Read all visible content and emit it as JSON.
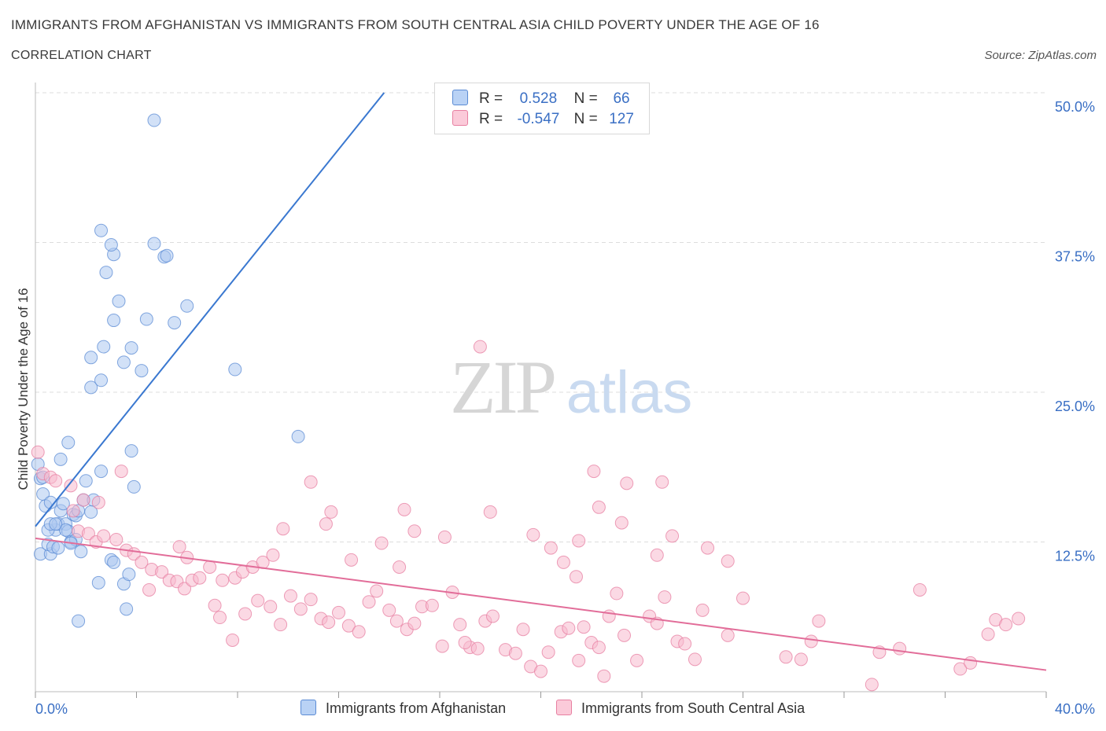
{
  "header": {
    "title": "IMMIGRANTS FROM AFGHANISTAN VS IMMIGRANTS FROM SOUTH CENTRAL ASIA CHILD POVERTY UNDER THE AGE OF 16",
    "subtitle": "CORRELATION CHART",
    "source": "Source: ZipAtlas.com"
  },
  "legend": {
    "r_label": "R =",
    "n_label": "N =",
    "rows": [
      {
        "r": "0.528",
        "n": "66"
      },
      {
        "r": "-0.547",
        "n": "127"
      }
    ]
  },
  "colors": {
    "afghanistan_fill": "#adc8f0",
    "afghanistan_stroke": "#5b8bd4",
    "afghanistan_line": "#3a78d0",
    "sca_fill": "#f7b9cd",
    "sca_stroke": "#e77fa1",
    "sca_line": "#e26d99",
    "axis_label": "#3a6fc4",
    "grid": "#dddddd"
  },
  "watermark": {
    "zip": "ZIP",
    "atlas": "atlas"
  },
  "chart_data": {
    "type": "scatter",
    "title": "IMMIGRANTS FROM AFGHANISTAN VS IMMIGRANTS FROM SOUTH CENTRAL ASIA CHILD POVERTY UNDER THE AGE OF 16",
    "xlabel": "",
    "ylabel": "Child Poverty Under the Age of 16",
    "xlim": [
      0,
      40
    ],
    "ylim": [
      0,
      50
    ],
    "x_ticks": [
      "0.0%",
      "40.0%"
    ],
    "y_ticks": [
      "12.5%",
      "25.0%",
      "37.5%",
      "50.0%"
    ],
    "y_tick_values": [
      12.5,
      25.0,
      37.5,
      50.0
    ],
    "grid": true,
    "series": [
      {
        "name": "Immigrants from Afghanistan",
        "r": 0.528,
        "n": 66,
        "trend": {
          "x0": 0.0,
          "y0": 13.8,
          "x1": 13.8,
          "y1": 50.0
        },
        "points": [
          [
            0.1,
            19.0
          ],
          [
            0.2,
            17.8
          ],
          [
            0.3,
            16.5
          ],
          [
            0.4,
            15.5
          ],
          [
            0.2,
            11.5
          ],
          [
            0.6,
            11.5
          ],
          [
            0.5,
            12.3
          ],
          [
            0.7,
            12.1
          ],
          [
            0.8,
            13.5
          ],
          [
            0.9,
            14.0
          ],
          [
            0.5,
            13.5
          ],
          [
            0.6,
            14.0
          ],
          [
            1.0,
            15.1
          ],
          [
            1.1,
            15.7
          ],
          [
            1.2,
            14.0
          ],
          [
            1.3,
            13.4
          ],
          [
            1.4,
            12.5
          ],
          [
            1.5,
            14.8
          ],
          [
            1.6,
            14.7
          ],
          [
            1.8,
            11.7
          ],
          [
            1.9,
            16.0
          ],
          [
            2.0,
            17.6
          ],
          [
            2.3,
            16.0
          ],
          [
            1.2,
            13.5
          ],
          [
            1.0,
            19.4
          ],
          [
            1.3,
            20.8
          ],
          [
            0.3,
            17.9
          ],
          [
            0.9,
            12.0
          ],
          [
            1.6,
            12.7
          ],
          [
            2.2,
            15.0
          ],
          [
            2.6,
            18.4
          ],
          [
            3.0,
            11.0
          ],
          [
            3.1,
            10.8
          ],
          [
            3.5,
            9.0
          ],
          [
            3.7,
            9.8
          ],
          [
            2.5,
            9.1
          ],
          [
            3.6,
            6.9
          ],
          [
            1.7,
            5.9
          ],
          [
            3.8,
            20.1
          ],
          [
            3.9,
            17.1
          ],
          [
            2.2,
            25.4
          ],
          [
            2.6,
            26.0
          ],
          [
            2.7,
            28.8
          ],
          [
            2.2,
            27.9
          ],
          [
            3.5,
            27.5
          ],
          [
            3.8,
            28.7
          ],
          [
            4.2,
            26.8
          ],
          [
            3.1,
            31.0
          ],
          [
            3.3,
            32.6
          ],
          [
            4.4,
            31.1
          ],
          [
            5.5,
            30.8
          ],
          [
            6.0,
            32.2
          ],
          [
            2.8,
            35.0
          ],
          [
            3.1,
            36.5
          ],
          [
            3.0,
            37.3
          ],
          [
            2.6,
            38.5
          ],
          [
            4.7,
            37.4
          ],
          [
            5.1,
            36.3
          ],
          [
            5.2,
            36.4
          ],
          [
            4.7,
            47.7
          ],
          [
            7.9,
            26.9
          ],
          [
            10.4,
            21.3
          ],
          [
            1.4,
            12.4
          ],
          [
            1.7,
            15.1
          ],
          [
            0.6,
            15.8
          ],
          [
            0.8,
            14.0
          ]
        ]
      },
      {
        "name": "Immigrants from South Central Asia",
        "r": -0.547,
        "n": 127,
        "trend": {
          "x0": 0.0,
          "y0": 12.8,
          "x1": 40.0,
          "y1": 1.8
        },
        "points": [
          [
            0.1,
            20.0
          ],
          [
            0.3,
            18.2
          ],
          [
            0.6,
            17.9
          ],
          [
            0.8,
            17.6
          ],
          [
            1.4,
            17.2
          ],
          [
            1.9,
            16.0
          ],
          [
            2.5,
            15.8
          ],
          [
            1.5,
            15.1
          ],
          [
            1.7,
            13.4
          ],
          [
            2.1,
            13.2
          ],
          [
            2.4,
            12.5
          ],
          [
            2.7,
            13.0
          ],
          [
            3.2,
            12.7
          ],
          [
            3.6,
            11.8
          ],
          [
            3.9,
            11.5
          ],
          [
            4.2,
            10.8
          ],
          [
            4.6,
            10.2
          ],
          [
            5.0,
            10.0
          ],
          [
            5.3,
            9.3
          ],
          [
            5.6,
            9.2
          ],
          [
            5.9,
            8.6
          ],
          [
            6.2,
            9.3
          ],
          [
            6.5,
            9.5
          ],
          [
            6.9,
            10.4
          ],
          [
            7.4,
            9.3
          ],
          [
            7.9,
            9.5
          ],
          [
            8.2,
            10.0
          ],
          [
            8.6,
            10.4
          ],
          [
            9.0,
            10.8
          ],
          [
            9.4,
            11.4
          ],
          [
            3.4,
            18.4
          ],
          [
            4.5,
            8.5
          ],
          [
            5.7,
            12.1
          ],
          [
            6.0,
            11.2
          ],
          [
            7.1,
            7.2
          ],
          [
            7.3,
            6.2
          ],
          [
            8.3,
            6.5
          ],
          [
            8.8,
            7.6
          ],
          [
            9.3,
            7.1
          ],
          [
            9.7,
            5.6
          ],
          [
            10.1,
            8.0
          ],
          [
            10.5,
            6.9
          ],
          [
            10.9,
            7.7
          ],
          [
            11.3,
            6.1
          ],
          [
            11.6,
            5.8
          ],
          [
            12.0,
            6.6
          ],
          [
            12.4,
            5.5
          ],
          [
            12.8,
            5.0
          ],
          [
            13.2,
            7.5
          ],
          [
            13.5,
            8.4
          ],
          [
            14.0,
            6.8
          ],
          [
            14.3,
            5.9
          ],
          [
            14.7,
            5.2
          ],
          [
            15.0,
            5.7
          ],
          [
            15.3,
            7.1
          ],
          [
            15.7,
            7.2
          ],
          [
            16.1,
            3.8
          ],
          [
            16.5,
            8.3
          ],
          [
            16.8,
            5.6
          ],
          [
            17.2,
            3.7
          ],
          [
            17.5,
            3.6
          ],
          [
            17.8,
            5.9
          ],
          [
            18.1,
            6.3
          ],
          [
            18.6,
            3.5
          ],
          [
            19.0,
            3.2
          ],
          [
            19.3,
            5.2
          ],
          [
            19.6,
            2.1
          ],
          [
            20.0,
            1.7
          ],
          [
            20.3,
            3.3
          ],
          [
            20.8,
            5.0
          ],
          [
            21.1,
            5.3
          ],
          [
            21.5,
            2.6
          ],
          [
            21.7,
            5.4
          ],
          [
            22.0,
            4.1
          ],
          [
            22.3,
            3.7
          ],
          [
            22.5,
            1.3
          ],
          [
            22.7,
            6.3
          ],
          [
            23.3,
            4.7
          ],
          [
            23.8,
            2.6
          ],
          [
            24.3,
            6.3
          ],
          [
            24.6,
            5.7
          ],
          [
            24.9,
            7.9
          ],
          [
            25.4,
            4.2
          ],
          [
            25.7,
            4.0
          ],
          [
            26.1,
            2.7
          ],
          [
            26.4,
            6.8
          ],
          [
            27.4,
            4.7
          ],
          [
            28.0,
            7.8
          ],
          [
            29.7,
            2.9
          ],
          [
            30.3,
            2.7
          ],
          [
            30.7,
            4.2
          ],
          [
            31.0,
            5.9
          ],
          [
            33.1,
            0.6
          ],
          [
            33.4,
            3.3
          ],
          [
            34.2,
            3.6
          ],
          [
            35.0,
            8.5
          ],
          [
            36.6,
            1.9
          ],
          [
            37.0,
            2.4
          ],
          [
            37.7,
            4.8
          ],
          [
            38.0,
            6.0
          ],
          [
            38.4,
            5.6
          ],
          [
            38.9,
            6.1
          ],
          [
            11.5,
            14.0
          ],
          [
            11.7,
            15.0
          ],
          [
            13.7,
            12.4
          ],
          [
            14.6,
            15.2
          ],
          [
            15.0,
            13.4
          ],
          [
            18.0,
            15.0
          ],
          [
            19.7,
            13.1
          ],
          [
            20.4,
            12.0
          ],
          [
            20.9,
            10.8
          ],
          [
            21.4,
            9.6
          ],
          [
            21.5,
            12.6
          ],
          [
            22.3,
            15.4
          ],
          [
            23.2,
            14.1
          ],
          [
            23.4,
            17.4
          ],
          [
            24.6,
            11.4
          ],
          [
            25.2,
            13.0
          ],
          [
            26.6,
            12.0
          ],
          [
            27.4,
            10.9
          ],
          [
            22.1,
            18.4
          ],
          [
            24.8,
            17.5
          ],
          [
            10.9,
            17.5
          ],
          [
            12.5,
            11.0
          ],
          [
            9.8,
            13.6
          ],
          [
            17.6,
            28.8
          ],
          [
            7.8,
            4.3
          ],
          [
            17.0,
            4.1
          ],
          [
            23.0,
            8.2
          ],
          [
            14.4,
            10.4
          ],
          [
            16.2,
            12.9
          ]
        ]
      }
    ]
  },
  "bottom_legend": {
    "afghanistan": "Immigrants from Afghanistan",
    "sca": "Immigrants from South Central Asia"
  }
}
